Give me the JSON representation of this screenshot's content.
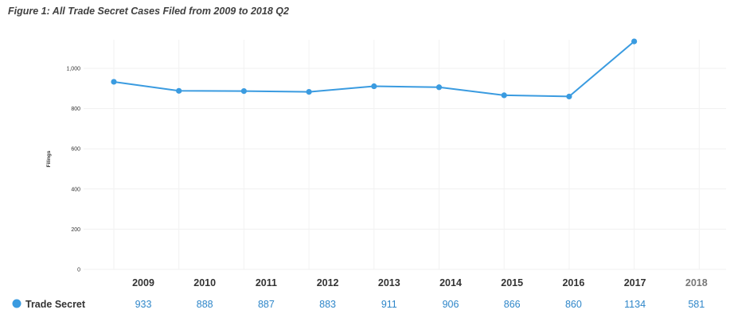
{
  "figure_title": "Figure 1: All Trade Secret Cases Filed from 2009 to 2018 Q2",
  "chart_data": {
    "type": "line",
    "title": "",
    "ylabel": "Filings",
    "xlabel": "",
    "ylim": [
      0,
      1134
    ],
    "y_ticks": [
      0,
      200,
      400,
      600,
      800,
      1000
    ],
    "y_tick_labels": [
      "0",
      "200",
      "400",
      "600",
      "800",
      "1,000"
    ],
    "grid": "vertical and horizontal, light",
    "categories": [
      "2009",
      "2010",
      "2011",
      "2012",
      "2013",
      "2014",
      "2015",
      "2016",
      "2017",
      "2018"
    ],
    "series": [
      {
        "name": "Trade Secret",
        "color": "#3a9be0",
        "values": [
          933,
          888,
          887,
          883,
          911,
          906,
          866,
          860,
          1134,
          581
        ],
        "value_labels": [
          "933",
          "888",
          "887",
          "883",
          "911",
          "906",
          "866",
          "860",
          "1134",
          "581"
        ],
        "plotted_points": 9
      }
    ],
    "legend": "data table below chart, left"
  }
}
